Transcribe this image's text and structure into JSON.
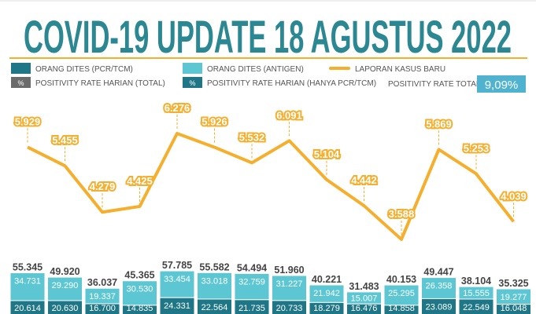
{
  "chart_data": {
    "type": "bar",
    "title": "COVID-19 UPDATE 18 AGUSTUS 2022",
    "legend": {
      "pcr": "ORANG DITES (PCR/TCM)",
      "antigen": "ORANG DITES (ANTIGEN)",
      "cases": "LAPORAN KASUS BARU",
      "pr_total": "POSITIVITY RATE HARIAN (TOTAL)",
      "pr_pcr": "POSITIVITY RATE HARIAN (HANYA PCR/TCM)",
      "pct_symbol": "%",
      "pr_overall_label": "POSITIVITY RATE TOTAL",
      "pr_overall_value": "9,09%"
    },
    "series": [
      {
        "name": "LAPORAN KASUS BARU",
        "type": "line",
        "values": [
          5929,
          5455,
          4279,
          4425,
          6276,
          5926,
          5532,
          6091,
          5104,
          4442,
          3588,
          5869,
          5253,
          4039
        ],
        "labels": [
          "5.929",
          "5.455",
          "4.279",
          "4.425",
          "6.276",
          "5.926",
          "5.532",
          "6.091",
          "5.104",
          "4.442",
          "3.588",
          "5.869",
          "5.253",
          "4.039"
        ]
      },
      {
        "name": "ORANG DITES (PCR/TCM)",
        "type": "bar",
        "values": [
          20614,
          20630,
          16700,
          14835,
          24331,
          22564,
          21735,
          20733,
          18279,
          16476,
          14858,
          23089,
          22549,
          16048
        ],
        "labels": [
          "20.614",
          "20.630",
          "16.700",
          "14.835",
          "24.331",
          "22.564",
          "21.735",
          "20.733",
          "18.279",
          "16.476",
          "14.858",
          "23.089",
          "22.549",
          "16.048"
        ]
      },
      {
        "name": "ORANG DITES (ANTIGEN)",
        "type": "bar",
        "values": [
          34731,
          29290,
          19337,
          30530,
          33454,
          33018,
          32759,
          31227,
          21942,
          15007,
          25295,
          26358,
          15555,
          19277
        ],
        "labels": [
          "34.731",
          "29.290",
          "19.337",
          "30.530",
          "33.454",
          "33.018",
          "32.759",
          "31.227",
          "21.942",
          "15.007",
          "25.295",
          "26.358",
          "15.555",
          "19.277"
        ]
      }
    ],
    "totals": [
      55345,
      49920,
      36037,
      45365,
      57785,
      55582,
      54494,
      51960,
      40221,
      31483,
      40153,
      49447,
      38104,
      35325
    ],
    "total_labels": [
      "55.345",
      "49.920",
      "36.037",
      "45.365",
      "57.785",
      "55.582",
      "54.494",
      "51.960",
      "40.221",
      "31.483",
      "40.153",
      "49.447",
      "38.104",
      "35.325"
    ],
    "colors": {
      "title": "#2b8792",
      "pcr": "#1f7686",
      "antigen": "#5cc6d3",
      "cases": "#f6ae2d",
      "pr_total": "#6b6b6b",
      "badge": "#4fb3cf"
    }
  }
}
